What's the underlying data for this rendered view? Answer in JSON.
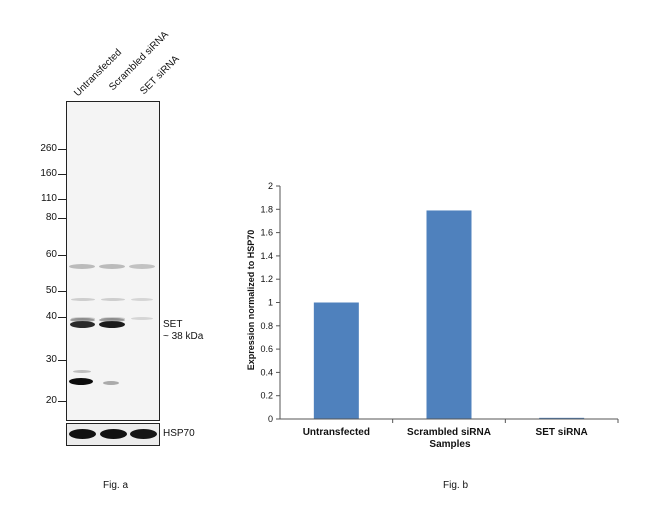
{
  "fig_a": {
    "lanes": [
      "Untransfected",
      "Scrambled siRNA",
      "SET siRNA"
    ],
    "markers": [
      "260",
      "160",
      "110",
      "80",
      "60",
      "50",
      "40",
      "30",
      "20"
    ],
    "set_label": "SET",
    "set_size": "~ 38 kDa",
    "loading_label": "HSP70",
    "caption": "Fig. a"
  },
  "fig_b": {
    "caption": "Fig. b"
  },
  "chart_data": {
    "type": "bar",
    "categories": [
      "Untransfected",
      "Scrambled siRNA",
      "SET siRNA"
    ],
    "values": [
      1.0,
      1.79,
      0.01
    ],
    "xlabel": "Samples",
    "ylabel": "Expression normalized to HSP70",
    "ylim": [
      0,
      2
    ],
    "yticks": [
      "0",
      "0.2",
      "0.4",
      "0.6",
      "0.8",
      "1",
      "1.2",
      "1.4",
      "1.6",
      "1.8",
      "2"
    ],
    "bar_color": "#4f81bd",
    "grid": false,
    "legend": "none"
  }
}
